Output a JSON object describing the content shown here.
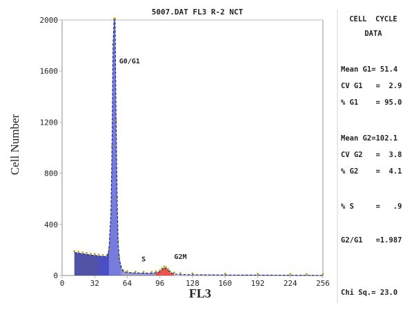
{
  "chart_data": {
    "type": "area",
    "title": "5007.DAT FL3 R-2 NCT",
    "xlabel": "FL3",
    "ylabel": "Cell Number",
    "xlim": [
      0,
      256
    ],
    "ylim": [
      0,
      2000
    ],
    "x_ticks": [
      0,
      32,
      64,
      96,
      128,
      160,
      192,
      224,
      256
    ],
    "y_ticks": [
      0,
      400,
      800,
      1200,
      1600,
      2000
    ],
    "grid": false,
    "peak_labels": [
      {
        "text": "G0/G1",
        "x": 56,
        "y": 1660
      },
      {
        "text": "S",
        "x": 78,
        "y": 110
      },
      {
        "text": "G2M",
        "x": 110,
        "y": 130
      }
    ],
    "series": [
      {
        "name": "",
        "x": [
          12,
          16,
          20,
          24,
          28,
          32,
          36,
          40,
          44,
          46,
          48,
          49,
          50,
          51,
          52,
          53,
          54,
          55,
          56,
          58,
          60,
          64,
          72,
          80,
          88,
          92,
          96,
          98,
          100,
          102,
          104,
          106,
          110,
          116,
          128,
          160,
          192,
          224,
          240,
          256
        ],
        "y": [
          180,
          175,
          170,
          165,
          160,
          158,
          152,
          150,
          148,
          200,
          500,
          1000,
          1800,
          2000,
          2000,
          1200,
          600,
          260,
          140,
          60,
          32,
          24,
          20,
          18,
          18,
          22,
          30,
          45,
          60,
          55,
          40,
          25,
          12,
          8,
          6,
          4,
          3,
          2,
          1,
          0
        ]
      }
    ],
    "colors": {
      "g1_fill": "#4a4fd0",
      "s_fill": "#3f3f9c",
      "g2_fill": "#e8443a",
      "fit_line": "#1b2a8a",
      "data_points": "#b8a51a",
      "axis": "#b4b4b4",
      "label_text": "#222222"
    }
  },
  "stats_panel": {
    "header_line1": "CELL  CYCLE",
    "header_line2": "DATA",
    "lines": [
      "Mean G1= 51.4",
      "CV G1   =  2.9",
      "% G1    = 95.0",
      "Mean G2=102.1",
      "CV G2   =  3.8",
      "% G2    =  4.1",
      "% S     =   .9",
      "G2/G1   =1.987",
      "Chi Sq.= 23.0"
    ]
  }
}
